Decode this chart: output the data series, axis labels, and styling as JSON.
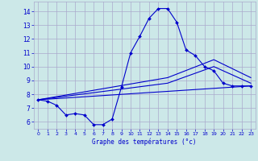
{
  "xlabel": "Graphe des températures (°c)",
  "background_color": "#cce8e8",
  "grid_color": "#aaaacc",
  "line_color": "#0000cc",
  "xlim": [
    -0.5,
    23.5
  ],
  "ylim": [
    5.5,
    14.7
  ],
  "xticks": [
    0,
    1,
    2,
    3,
    4,
    5,
    6,
    7,
    8,
    9,
    10,
    11,
    12,
    13,
    14,
    15,
    16,
    17,
    18,
    19,
    20,
    21,
    22,
    23
  ],
  "yticks": [
    6,
    7,
    8,
    9,
    10,
    11,
    12,
    13,
    14
  ],
  "series1_x": [
    0,
    1,
    2,
    3,
    4,
    5,
    6,
    7,
    8,
    9,
    10,
    11,
    12,
    13,
    14,
    15,
    16,
    17,
    18,
    19,
    20,
    21,
    22,
    23
  ],
  "series1_y": [
    7.6,
    7.5,
    7.2,
    6.5,
    6.6,
    6.5,
    5.8,
    5.8,
    6.2,
    8.5,
    11.0,
    12.2,
    13.5,
    14.2,
    14.2,
    13.2,
    11.2,
    10.8,
    10.0,
    9.7,
    8.8,
    8.6,
    8.6,
    8.6
  ],
  "series2_x": [
    0,
    23
  ],
  "series2_y": [
    7.6,
    8.6
  ],
  "series3_x": [
    0,
    14,
    19,
    23
  ],
  "series3_y": [
    7.6,
    8.8,
    10.0,
    8.8
  ],
  "series4_x": [
    0,
    14,
    19,
    23
  ],
  "series4_y": [
    7.6,
    9.2,
    10.5,
    9.2
  ]
}
